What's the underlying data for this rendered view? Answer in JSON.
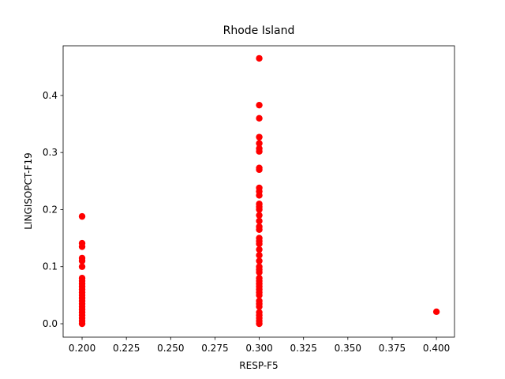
{
  "chart_data": {
    "type": "scatter",
    "title": "Rhode Island",
    "xlabel": "RESP-F5",
    "ylabel": "LINGISOPCT-F19",
    "color": "#ff0000",
    "x": [
      0.2,
      0.2,
      0.2,
      0.2,
      0.2,
      0.2,
      0.2,
      0.2,
      0.2,
      0.2,
      0.2,
      0.2,
      0.2,
      0.2,
      0.2,
      0.2,
      0.2,
      0.2,
      0.2,
      0.2,
      0.2,
      0.2,
      0.2,
      0.3,
      0.3,
      0.3,
      0.3,
      0.3,
      0.3,
      0.3,
      0.3,
      0.3,
      0.3,
      0.3,
      0.3,
      0.3,
      0.3,
      0.3,
      0.3,
      0.3,
      0.3,
      0.3,
      0.3,
      0.3,
      0.3,
      0.3,
      0.3,
      0.3,
      0.3,
      0.3,
      0.3,
      0.3,
      0.3,
      0.3,
      0.3,
      0.3,
      0.3,
      0.3,
      0.3,
      0.3,
      0.3,
      0.3,
      0.3,
      0.3,
      0.3,
      0.3,
      0.4
    ],
    "values": [
      0.188,
      0.141,
      0.135,
      0.115,
      0.11,
      0.1,
      0.08,
      0.075,
      0.07,
      0.065,
      0.06,
      0.055,
      0.05,
      0.045,
      0.04,
      0.035,
      0.03,
      0.025,
      0.02,
      0.015,
      0.01,
      0.005,
      0.0,
      0.465,
      0.383,
      0.36,
      0.327,
      0.316,
      0.307,
      0.302,
      0.273,
      0.27,
      0.238,
      0.232,
      0.225,
      0.21,
      0.205,
      0.2,
      0.19,
      0.18,
      0.17,
      0.165,
      0.15,
      0.145,
      0.14,
      0.13,
      0.12,
      0.11,
      0.1,
      0.095,
      0.09,
      0.08,
      0.075,
      0.07,
      0.065,
      0.06,
      0.055,
      0.05,
      0.04,
      0.035,
      0.03,
      0.02,
      0.015,
      0.01,
      0.005,
      0.0,
      0.021
    ],
    "xlim": [
      0.1893,
      0.4102
    ],
    "ylim": [
      -0.0235,
      0.487
    ],
    "xticks": [
      {
        "value": 0.2,
        "label": "0.200"
      },
      0.225,
      {
        "value": 0.25,
        "label": "0.250"
      },
      0.275,
      {
        "value": 0.3,
        "label": "0.300"
      },
      0.325,
      {
        "value": 0.35,
        "label": "0.350"
      },
      0.375,
      {
        "value": 0.4,
        "label": "0.400"
      }
    ],
    "yticks": [
      {
        "value": 0,
        "label": "0.0"
      },
      0.1,
      0.2,
      0.3,
      0.4
    ]
  }
}
